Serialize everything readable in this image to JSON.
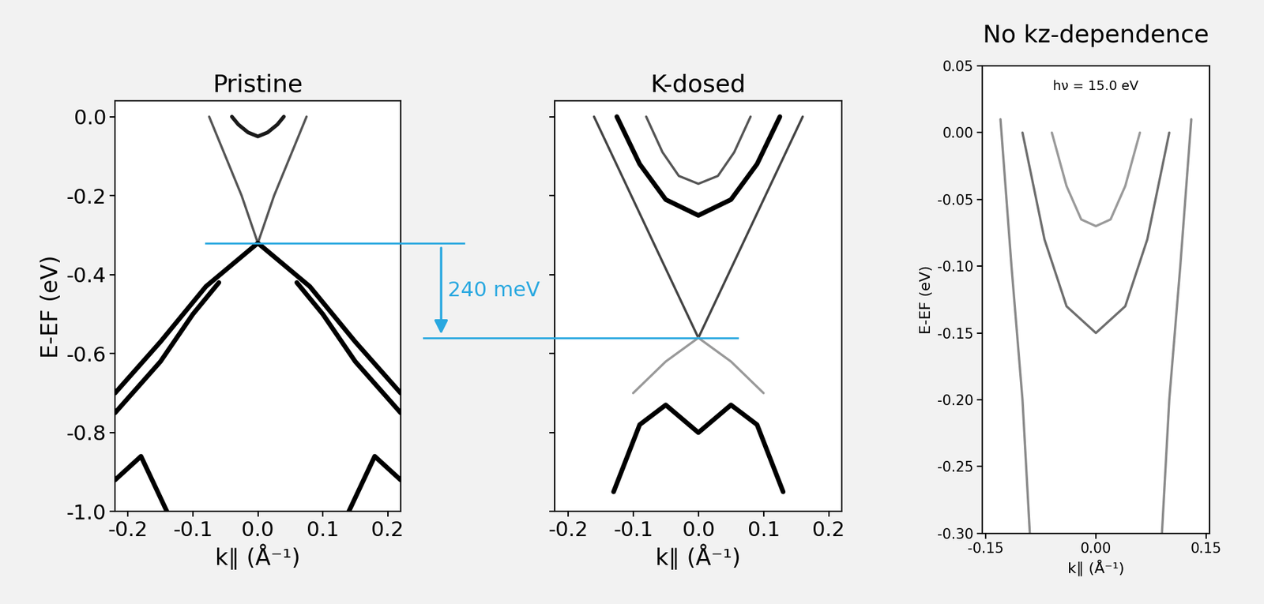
{
  "chart_data": [
    {
      "type": "line",
      "title": "Pristine",
      "x_label": "k∥ (Å⁻¹)",
      "y_label": "E-EF (eV)",
      "xlim": [
        -0.22,
        0.22
      ],
      "ylim": [
        -1.0,
        0.04
      ],
      "xticks": [
        -0.2,
        -0.1,
        0.0,
        0.1,
        0.2
      ],
      "yticks": [
        0.0,
        -0.2,
        -0.4,
        -0.6,
        -0.8,
        -1.0
      ],
      "tick_labels": true,
      "series": [
        {
          "color": "#555555",
          "x": [
            -0.075,
            -0.05,
            -0.025,
            0.0,
            0.025,
            0.05,
            0.075
          ],
          "values": [
            0.0,
            -0.1,
            -0.2,
            -0.32,
            -0.2,
            -0.1,
            0.0
          ]
        },
        {
          "color": "#1a1a1a",
          "x": [
            -0.04,
            -0.03,
            -0.015,
            0.0,
            0.015,
            0.03,
            0.04
          ],
          "values": [
            0.0,
            -0.02,
            -0.04,
            -0.05,
            -0.04,
            -0.02,
            0.0
          ]
        },
        {
          "color": "#000000",
          "x": [
            -0.22,
            -0.15,
            -0.08,
            0.0,
            0.08,
            0.15,
            0.22
          ],
          "values": [
            -0.7,
            -0.57,
            -0.43,
            -0.32,
            -0.43,
            -0.57,
            -0.7
          ]
        },
        {
          "color": "#000000",
          "x": [
            -0.22,
            -0.15,
            -0.1,
            -0.06
          ],
          "values": [
            -0.75,
            -0.62,
            -0.5,
            -0.42
          ]
        },
        {
          "color": "#000000",
          "x": [
            0.06,
            0.1,
            0.15,
            0.22
          ],
          "values": [
            -0.42,
            -0.5,
            -0.62,
            -0.75
          ]
        },
        {
          "color": "#000000",
          "x": [
            -0.22,
            -0.18,
            -0.14
          ],
          "values": [
            -0.92,
            -0.86,
            -1.0
          ]
        },
        {
          "color": "#000000",
          "x": [
            0.14,
            0.18,
            0.22
          ],
          "values": [
            -1.0,
            -0.86,
            -0.92
          ]
        }
      ]
    },
    {
      "type": "line",
      "title": "K-dosed",
      "x_label": "k∥ (Å⁻¹)",
      "xlim": [
        -0.22,
        0.22
      ],
      "ylim": [
        -1.0,
        0.04
      ],
      "xticks": [
        -0.2,
        -0.1,
        0.0,
        0.1,
        0.2
      ],
      "yticks": [
        0.0,
        -0.2,
        -0.4,
        -0.6,
        -0.8,
        -1.0
      ],
      "tick_labels": "x",
      "series": [
        {
          "color": "#444444",
          "x": [
            -0.16,
            -0.12,
            -0.08,
            -0.04,
            0.0,
            0.04,
            0.08,
            0.12,
            0.16
          ],
          "values": [
            0.0,
            -0.14,
            -0.28,
            -0.42,
            -0.56,
            -0.42,
            -0.28,
            -0.14,
            0.0
          ]
        },
        {
          "color": "#000000",
          "x": [
            -0.125,
            -0.09,
            -0.05,
            0.0,
            0.05,
            0.09,
            0.125
          ],
          "values": [
            0.0,
            -0.12,
            -0.21,
            -0.25,
            -0.21,
            -0.12,
            0.0
          ]
        },
        {
          "color": "#555555",
          "x": [
            -0.08,
            -0.055,
            -0.03,
            0.0,
            0.03,
            0.055,
            0.08
          ],
          "values": [
            0.0,
            -0.09,
            -0.15,
            -0.17,
            -0.15,
            -0.09,
            0.0
          ]
        },
        {
          "color": "#999999",
          "x": [
            -0.1,
            -0.05,
            0.0,
            0.05,
            0.1
          ],
          "values": [
            -0.7,
            -0.62,
            -0.56,
            -0.62,
            -0.7
          ]
        },
        {
          "color": "#000000",
          "x": [
            -0.13,
            -0.09,
            -0.05,
            0.0,
            0.05,
            0.09,
            0.13
          ],
          "values": [
            -0.95,
            -0.78,
            -0.73,
            -0.8,
            -0.73,
            -0.78,
            -0.95
          ]
        }
      ]
    },
    {
      "type": "line",
      "title": "No kz-dependence",
      "x_label": "k∥ (Å⁻¹)",
      "y_label": "E-EF (eV)",
      "note": "hν = 15.0 eV",
      "xlim": [
        -0.155,
        0.155
      ],
      "ylim": [
        -0.3,
        0.05
      ],
      "xticks": [
        -0.15,
        {
          "value": 0.0,
          "label": "0.00"
        },
        0.15
      ],
      "yticks": [
        0.05,
        {
          "value": 0.0,
          "label": "0.00"
        },
        -0.05,
        {
          "value": -0.1,
          "label": "-0.10"
        },
        -0.15,
        {
          "value": -0.2,
          "label": "-0.20"
        },
        -0.25,
        {
          "value": -0.3,
          "label": "-0.30"
        }
      ],
      "tick_labels": true,
      "series": [
        {
          "color": "#8a8a8a",
          "x": [
            -0.13,
            -0.115,
            -0.1,
            -0.09
          ],
          "values": [
            0.01,
            -0.1,
            -0.2,
            -0.3
          ]
        },
        {
          "color": "#8a8a8a",
          "x": [
            0.09,
            0.1,
            0.115,
            0.13
          ],
          "values": [
            -0.3,
            -0.2,
            -0.1,
            0.01
          ]
        },
        {
          "color": "#6e6e6e",
          "x": [
            -0.1,
            -0.07,
            -0.04,
            0.0,
            0.04,
            0.07,
            0.1
          ],
          "values": [
            0.0,
            -0.08,
            -0.13,
            -0.15,
            -0.13,
            -0.08,
            0.0
          ]
        },
        {
          "color": "#9a9a9a",
          "x": [
            -0.06,
            -0.04,
            -0.02,
            0.0,
            0.02,
            0.04,
            0.06
          ],
          "values": [
            0.0,
            -0.04,
            -0.065,
            -0.07,
            -0.065,
            -0.04,
            0.0
          ]
        }
      ]
    }
  ],
  "annotation": {
    "text": "240 meV",
    "y_from": -0.32,
    "y_to": -0.56,
    "color": "#29a8e0"
  }
}
